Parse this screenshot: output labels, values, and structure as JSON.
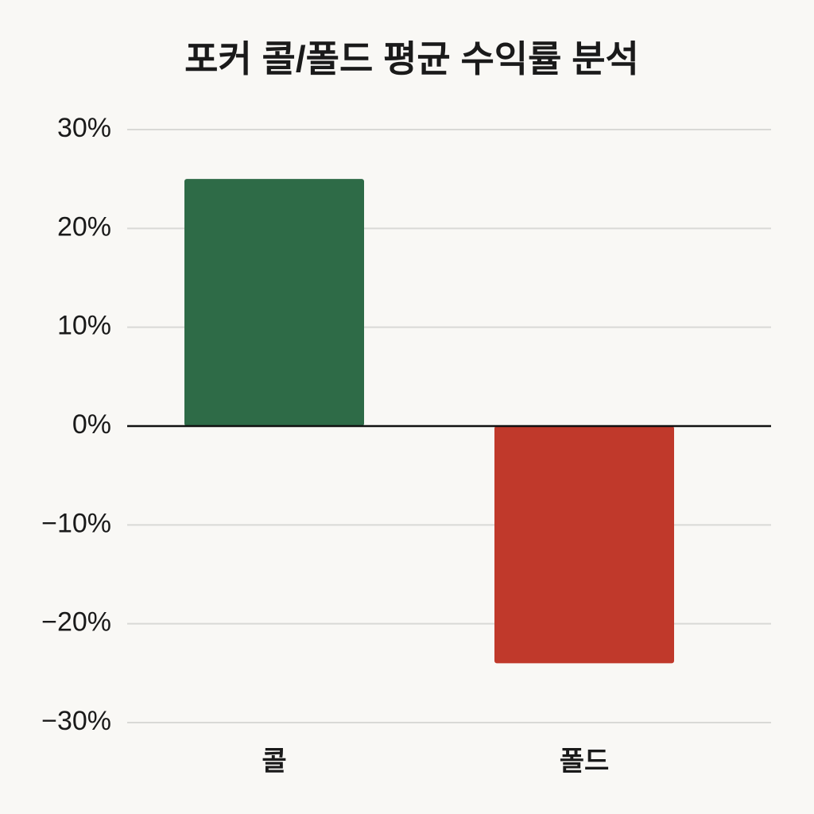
{
  "chart_data": {
    "type": "bar",
    "title": "포커 콜/폴드 평균 수익률 분석",
    "categories": [
      "콜",
      "폴드"
    ],
    "values": [
      25,
      -24
    ],
    "colors": [
      "#2e6b47",
      "#c0392b"
    ],
    "ylim": [
      -30,
      30
    ],
    "yticks": [
      {
        "value": -30,
        "label": "−30%"
      },
      {
        "value": -20,
        "label": "−20%"
      },
      {
        "value": -10,
        "label": "−10%"
      },
      {
        "value": 0,
        "label": "0%"
      },
      {
        "value": 10,
        "label": "10%"
      },
      {
        "value": 20,
        "label": "20%"
      },
      {
        "value": 30,
        "label": "30%"
      }
    ],
    "grid": true
  }
}
